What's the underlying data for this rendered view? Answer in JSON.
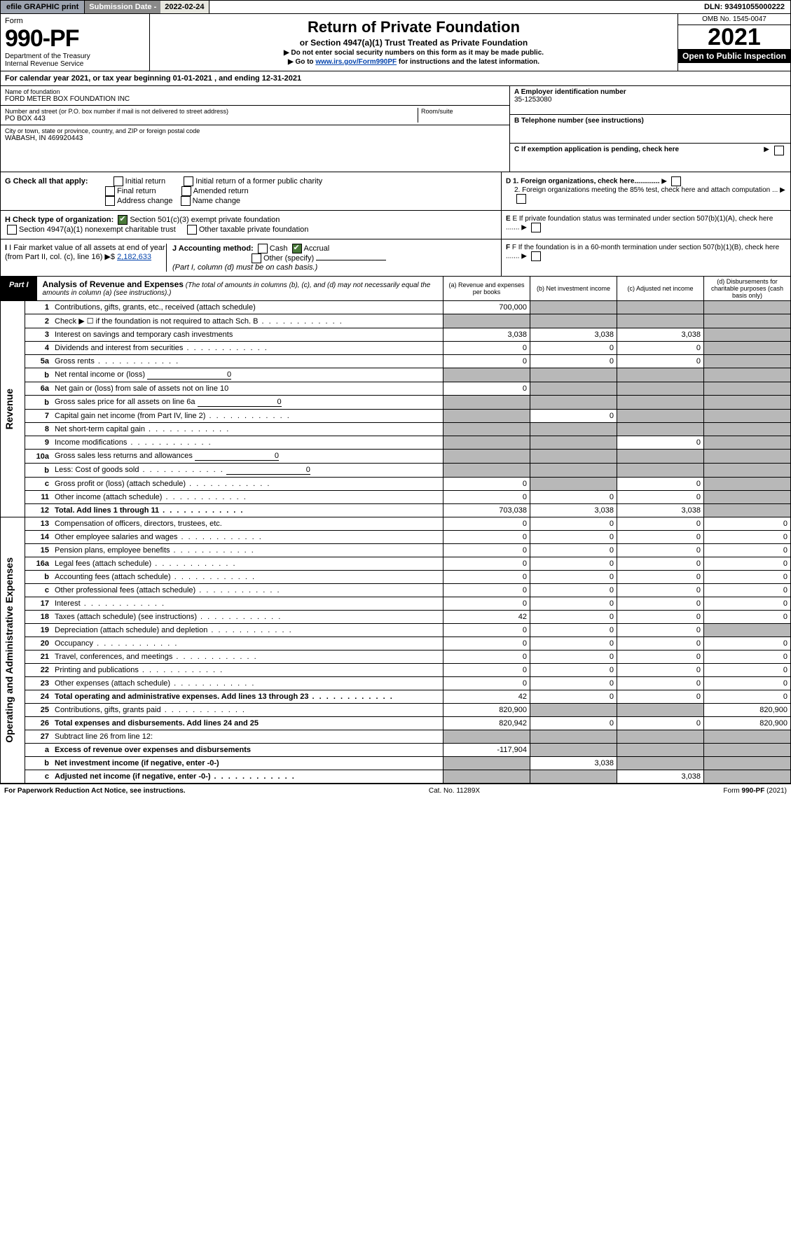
{
  "header": {
    "efile": "efile GRAPHIC print",
    "sub_label": "Submission Date - 2022-02-24",
    "dln": "DLN: 93491055000222"
  },
  "title": {
    "form": "Form",
    "form_num": "990-PF",
    "dept": "Department of the Treasury",
    "irs": "Internal Revenue Service",
    "main": "Return of Private Foundation",
    "sub": "or Section 4947(a)(1) Trust Treated as Private Foundation",
    "note1": "▶ Do not enter social security numbers on this form as it may be made public.",
    "note2_pre": "▶ Go to ",
    "note2_link": "www.irs.gov/Form990PF",
    "note2_post": " for instructions and the latest information.",
    "omb": "OMB No. 1545-0047",
    "year": "2021",
    "open": "Open to Public Inspection"
  },
  "cal": "For calendar year 2021, or tax year beginning 01-01-2021          , and ending 12-31-2021",
  "info": {
    "name_label": "Name of foundation",
    "name": "FORD METER BOX FOUNDATION INC",
    "addr_label": "Number and street (or P.O. box number if mail is not delivered to street address)",
    "addr": "PO BOX 443",
    "room_label": "Room/suite",
    "city_label": "City or town, state or province, country, and ZIP or foreign postal code",
    "city": "WABASH, IN  469920443",
    "ein_label": "A Employer identification number",
    "ein": "35-1253080",
    "tel_label": "B Telephone number (see instructions)",
    "c_label": "C If exemption application is pending, check here"
  },
  "g": {
    "label": "G Check all that apply:",
    "opts": [
      "Initial return",
      "Final return",
      "Address change",
      "Initial return of a former public charity",
      "Amended return",
      "Name change"
    ]
  },
  "d": {
    "d1": "D 1. Foreign organizations, check here.............",
    "d2": "2. Foreign organizations meeting the 85% test, check here and attach computation ...",
    "e": "E  If private foundation status was terminated under section 507(b)(1)(A), check here .......",
    "f": "F  If the foundation is in a 60-month termination under section 507(b)(1)(B), check here ......."
  },
  "h": {
    "label": "H Check type of organization:",
    "opt1": "Section 501(c)(3) exempt private foundation",
    "opt2": "Section 4947(a)(1) nonexempt charitable trust",
    "opt3": "Other taxable private foundation"
  },
  "i": {
    "label": "I Fair market value of all assets at end of year (from Part II, col. (c), line 16)",
    "amount": "2,182,633"
  },
  "j": {
    "label": "J Accounting method:",
    "cash": "Cash",
    "accrual": "Accrual",
    "other": "Other (specify)",
    "note": "(Part I, column (d) must be on cash basis.)"
  },
  "part1": {
    "tag": "Part I",
    "title": "Analysis of Revenue and Expenses",
    "sub": "(The total of amounts in columns (b), (c), and (d) may not necessarily equal the amounts in column (a) (see instructions).)",
    "cols": {
      "a": "(a)  Revenue and expenses per books",
      "b": "(b)  Net investment income",
      "c": "(c)  Adjusted net income",
      "d": "(d)  Disbursements for charitable purposes (cash basis only)"
    }
  },
  "vlabels": {
    "rev": "Revenue",
    "exp": "Operating and Administrative Expenses"
  },
  "rows": [
    {
      "n": "1",
      "d": "Contributions, gifts, grants, etc., received (attach schedule)",
      "a": "700,000",
      "b_shade": true,
      "c_shade": true,
      "d_shade": true
    },
    {
      "n": "2",
      "d": "Check ▶ ☐ if the foundation is not required to attach Sch. B",
      "a_shade": true,
      "b_shade": true,
      "c_shade": true,
      "d_shade": true,
      "dots": true
    },
    {
      "n": "3",
      "d": "Interest on savings and temporary cash investments",
      "a": "3,038",
      "b": "3,038",
      "c": "3,038",
      "d_shade": true
    },
    {
      "n": "4",
      "d": "Dividends and interest from securities",
      "a": "0",
      "b": "0",
      "c": "0",
      "d_shade": true,
      "dots": true
    },
    {
      "n": "5a",
      "d": "Gross rents",
      "a": "0",
      "b": "0",
      "c": "0",
      "d_shade": true,
      "dots": true
    },
    {
      "n": "b",
      "d": "Net rental income or (loss)",
      "inline": "0",
      "a_shade": true,
      "b_shade": true,
      "c_shade": true,
      "d_shade": true
    },
    {
      "n": "6a",
      "d": "Net gain or (loss) from sale of assets not on line 10",
      "a": "0",
      "b_shade": true,
      "c_shade": true,
      "d_shade": true
    },
    {
      "n": "b",
      "d": "Gross sales price for all assets on line 6a",
      "inline": "0",
      "a_shade": true,
      "b_shade": true,
      "c_shade": true,
      "d_shade": true
    },
    {
      "n": "7",
      "d": "Capital gain net income (from Part IV, line 2)",
      "a_shade": true,
      "b": "0",
      "c_shade": true,
      "d_shade": true,
      "dots": true
    },
    {
      "n": "8",
      "d": "Net short-term capital gain",
      "a_shade": true,
      "b_shade": true,
      "c_shade": true,
      "d_shade": true,
      "dots": true
    },
    {
      "n": "9",
      "d": "Income modifications",
      "a_shade": true,
      "b_shade": true,
      "c": "0",
      "d_shade": true,
      "dots": true
    },
    {
      "n": "10a",
      "d": "Gross sales less returns and allowances",
      "inline": "0",
      "a_shade": true,
      "b_shade": true,
      "c_shade": true,
      "d_shade": true
    },
    {
      "n": "b",
      "d": "Less: Cost of goods sold",
      "inline": "0",
      "a_shade": true,
      "b_shade": true,
      "c_shade": true,
      "d_shade": true,
      "dots": true
    },
    {
      "n": "c",
      "d": "Gross profit or (loss) (attach schedule)",
      "a": "0",
      "b_shade": true,
      "c": "0",
      "d_shade": true,
      "dots": true
    },
    {
      "n": "11",
      "d": "Other income (attach schedule)",
      "a": "0",
      "b": "0",
      "c": "0",
      "d_shade": true,
      "dots": true
    },
    {
      "n": "12",
      "d": "Total. Add lines 1 through 11",
      "a": "703,038",
      "b": "3,038",
      "c": "3,038",
      "d_shade": true,
      "bold": true,
      "dots": true
    },
    {
      "n": "13",
      "d": "Compensation of officers, directors, trustees, etc.",
      "a": "0",
      "b": "0",
      "c": "0",
      "dd": "0"
    },
    {
      "n": "14",
      "d": "Other employee salaries and wages",
      "a": "0",
      "b": "0",
      "c": "0",
      "dd": "0",
      "dots": true
    },
    {
      "n": "15",
      "d": "Pension plans, employee benefits",
      "a": "0",
      "b": "0",
      "c": "0",
      "dd": "0",
      "dots": true
    },
    {
      "n": "16a",
      "d": "Legal fees (attach schedule)",
      "a": "0",
      "b": "0",
      "c": "0",
      "dd": "0",
      "dots": true
    },
    {
      "n": "b",
      "d": "Accounting fees (attach schedule)",
      "a": "0",
      "b": "0",
      "c": "0",
      "dd": "0",
      "dots": true
    },
    {
      "n": "c",
      "d": "Other professional fees (attach schedule)",
      "a": "0",
      "b": "0",
      "c": "0",
      "dd": "0",
      "dots": true
    },
    {
      "n": "17",
      "d": "Interest",
      "a": "0",
      "b": "0",
      "c": "0",
      "dd": "0",
      "dots": true
    },
    {
      "n": "18",
      "d": "Taxes (attach schedule) (see instructions)",
      "a": "42",
      "b": "0",
      "c": "0",
      "dd": "0",
      "dots": true
    },
    {
      "n": "19",
      "d": "Depreciation (attach schedule) and depletion",
      "a": "0",
      "b": "0",
      "c": "0",
      "d_shade": true,
      "dots": true
    },
    {
      "n": "20",
      "d": "Occupancy",
      "a": "0",
      "b": "0",
      "c": "0",
      "dd": "0",
      "dots": true
    },
    {
      "n": "21",
      "d": "Travel, conferences, and meetings",
      "a": "0",
      "b": "0",
      "c": "0",
      "dd": "0",
      "dots": true
    },
    {
      "n": "22",
      "d": "Printing and publications",
      "a": "0",
      "b": "0",
      "c": "0",
      "dd": "0",
      "dots": true
    },
    {
      "n": "23",
      "d": "Other expenses (attach schedule)",
      "a": "0",
      "b": "0",
      "c": "0",
      "dd": "0",
      "dots": true
    },
    {
      "n": "24",
      "d": "Total operating and administrative expenses. Add lines 13 through 23",
      "a": "42",
      "b": "0",
      "c": "0",
      "dd": "0",
      "bold": true,
      "dots": true
    },
    {
      "n": "25",
      "d": "Contributions, gifts, grants paid",
      "a": "820,900",
      "b_shade": true,
      "c_shade": true,
      "dd": "820,900",
      "dots": true
    },
    {
      "n": "26",
      "d": "Total expenses and disbursements. Add lines 24 and 25",
      "a": "820,942",
      "b": "0",
      "c": "0",
      "dd": "820,900",
      "bold": true
    },
    {
      "n": "27",
      "d": "Subtract line 26 from line 12:",
      "a_shade": true,
      "b_shade": true,
      "c_shade": true,
      "d_shade": true
    },
    {
      "n": "a",
      "d": "Excess of revenue over expenses and disbursements",
      "a": "-117,904",
      "b_shade": true,
      "c_shade": true,
      "d_shade": true,
      "bold": true
    },
    {
      "n": "b",
      "d": "Net investment income (if negative, enter -0-)",
      "a_shade": true,
      "b": "3,038",
      "c_shade": true,
      "d_shade": true,
      "bold": true
    },
    {
      "n": "c",
      "d": "Adjusted net income (if negative, enter -0-)",
      "a_shade": true,
      "b_shade": true,
      "c": "3,038",
      "d_shade": true,
      "bold": true,
      "dots": true
    }
  ],
  "footer": {
    "left": "For Paperwork Reduction Act Notice, see instructions.",
    "mid": "Cat. No. 11289X",
    "right": "Form 990-PF (2021)"
  }
}
